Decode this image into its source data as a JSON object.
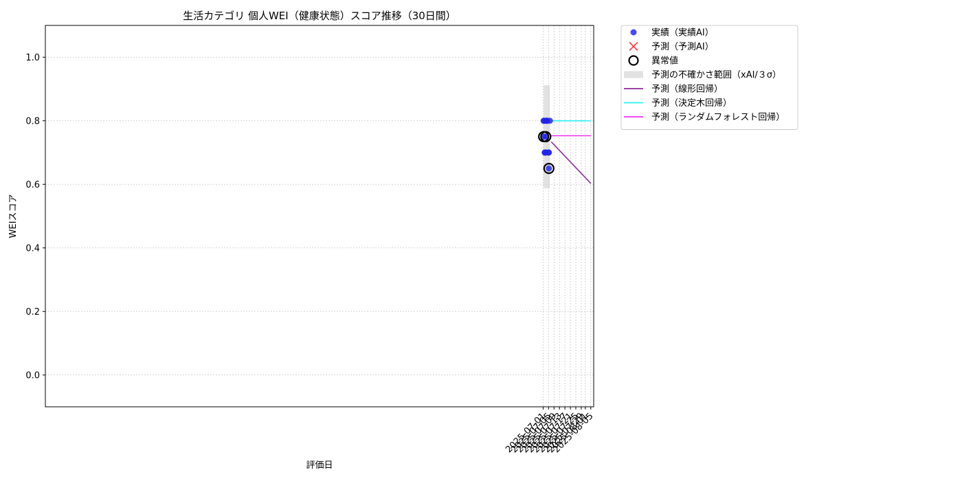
{
  "chart_data": {
    "type": "scatter",
    "title": "生活カテゴリ 個人WEI（健康状態）スコア推移（30日間）",
    "xlabel": "評価日",
    "ylabel": "WEIスコア",
    "xlim": [
      "2024-06-30T15:36",
      "2025-08-07T03:00"
    ],
    "ylim": [
      -0.1,
      1.1
    ],
    "yticks": [
      0.0,
      0.2,
      0.4,
      0.6,
      0.8,
      1.0
    ],
    "ytick_labels": [
      "0.0",
      "0.2",
      "0.4",
      "0.6",
      "0.8",
      "1.0"
    ],
    "xticks": [
      "2025-07-01",
      "2025-07-05",
      "2025-07-09",
      "2025-07-13",
      "2025-07-17",
      "2025-07-21",
      "2025-07-25",
      "2025-07-29",
      "2025-08-01",
      "2025-08-05"
    ],
    "grid": true,
    "legend_position": "outside-top-right",
    "series": [
      {
        "name": "実績（実績AI）",
        "kind": "scatter",
        "color": "#2222e6",
        "points": [
          {
            "x": "2025-07-01T09:00",
            "y": 0.75
          },
          {
            "x": "2025-07-01T09:00",
            "y": 0.8
          },
          {
            "x": "2025-07-01T21:00",
            "y": 0.8
          },
          {
            "x": "2025-07-02T06:00",
            "y": 0.7
          },
          {
            "x": "2025-07-02T06:00",
            "y": 0.7
          },
          {
            "x": "2025-07-02T23:00",
            "y": 0.75
          },
          {
            "x": "2025-07-03T06:00",
            "y": 0.7
          },
          {
            "x": "2025-07-03T06:00",
            "y": 0.8
          },
          {
            "x": "2025-07-03T16:00",
            "y": 0.8
          },
          {
            "x": "2025-07-03T23:00",
            "y": 0.8
          },
          {
            "x": "2025-07-04T23:00",
            "y": 0.7
          },
          {
            "x": "2025-07-05T06:00",
            "y": 0.7
          },
          {
            "x": "2025-07-05T06:00",
            "y": 0.65
          },
          {
            "x": "2025-07-05T23:00",
            "y": 0.8
          }
        ]
      },
      {
        "name": "予測（予測AI）",
        "kind": "cross",
        "color": "#ff3b3b",
        "points": []
      },
      {
        "name": "異常値",
        "kind": "ring",
        "color": "#000000",
        "points": [
          {
            "x": "2025-07-01T09:00",
            "y": 0.75
          },
          {
            "x": "2025-07-02T23:00",
            "y": 0.75
          },
          {
            "x": "2025-07-05T06:00",
            "y": 0.65
          }
        ]
      },
      {
        "name": "予測の不確かさ範囲（xAI/３σ）",
        "kind": "band",
        "color": "#d3d3d3",
        "x0": "2025-07-01T09:00",
        "x1": "2025-07-05T23:00",
        "y0": 0.588,
        "y1": 0.912
      },
      {
        "name": "予測（線形回帰）",
        "kind": "line",
        "color": "#8e2c9a",
        "points": [
          {
            "x": "2025-07-06T23:00",
            "y": 0.734
          },
          {
            "x": "2025-08-05T00:00",
            "y": 0.603
          }
        ]
      },
      {
        "name": "予測（決定木回帰）",
        "kind": "line",
        "color": "#2ff2f2",
        "points": [
          {
            "x": "2025-07-06T23:00",
            "y": 0.8
          },
          {
            "x": "2025-08-05T00:00",
            "y": 0.8
          }
        ]
      },
      {
        "name": "予測（ランダムフォレスト回帰）",
        "kind": "line",
        "color": "#ef2ef5",
        "points": [
          {
            "x": "2025-07-06T23:00",
            "y": 0.753
          },
          {
            "x": "2025-08-05T00:00",
            "y": 0.753
          }
        ]
      }
    ]
  }
}
